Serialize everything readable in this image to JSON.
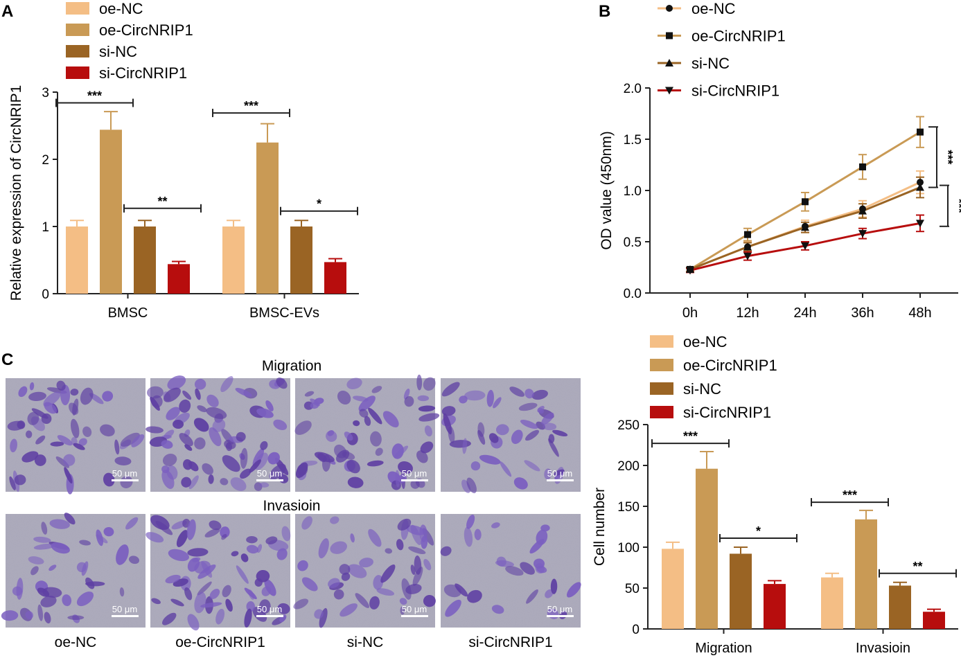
{
  "colors": {
    "oe_nc": "#F4BE85",
    "oe_circnrip1": "#C99A55",
    "si_nc": "#9A6424",
    "si_circnrip1": "#B70D0D",
    "axis": "#222222",
    "stain_dark": "#5E3FA3",
    "stain_light": "#A9A7B9"
  },
  "panels": {
    "a": "A",
    "b": "B",
    "c": "C"
  },
  "chart_data": [
    {
      "id": "A",
      "type": "bar",
      "ylabel": "Relative expression of CircNRIP1",
      "xlabel": "",
      "ylim": [
        0,
        3
      ],
      "yticks": [
        "0",
        "1",
        "2",
        "3"
      ],
      "categories": [
        "BMSC",
        "BMSC-EVs"
      ],
      "legend_position": "top-left",
      "series": [
        {
          "name": "oe-NC",
          "color": "#F4BE85",
          "values": [
            1.0,
            1.0
          ],
          "errors": [
            0.09,
            0.09
          ]
        },
        {
          "name": "oe-CircNRIP1",
          "color": "#C99A55",
          "values": [
            2.44,
            2.25
          ],
          "errors": [
            0.27,
            0.28
          ]
        },
        {
          "name": "si-NC",
          "color": "#9A6424",
          "values": [
            1.0,
            1.0
          ],
          "errors": [
            0.09,
            0.09
          ]
        },
        {
          "name": "si-CircNRIP1",
          "color": "#B70D0D",
          "values": [
            0.44,
            0.47
          ],
          "errors": [
            0.04,
            0.05
          ]
        }
      ],
      "significance": [
        {
          "category": "BMSC",
          "pair": [
            0,
            1
          ],
          "label": "***",
          "level": 2.84
        },
        {
          "category": "BMSC",
          "pair": [
            2,
            3
          ],
          "label": "**",
          "level": 1.27
        },
        {
          "category": "BMSC-EVs",
          "pair": [
            0,
            1
          ],
          "label": "***",
          "level": 2.69
        },
        {
          "category": "BMSC-EVs",
          "pair": [
            2,
            3
          ],
          "label": "*",
          "level": 1.23
        }
      ]
    },
    {
      "id": "B",
      "type": "line",
      "ylabel": "OD value (450nm)",
      "xlabel": "",
      "ylim": [
        0,
        2
      ],
      "yticks": [
        "0.0",
        "0.5",
        "1.0",
        "1.5",
        "2.0"
      ],
      "x": [
        "0h",
        "12h",
        "24h",
        "36h",
        "48h"
      ],
      "legend_position": "top-left",
      "series": [
        {
          "name": "oe-NC",
          "color": "#F4BE85",
          "marker": "circle",
          "values": [
            0.23,
            0.45,
            0.65,
            0.82,
            1.08
          ],
          "errors": [
            0.02,
            0.05,
            0.06,
            0.08,
            0.11
          ]
        },
        {
          "name": "oe-CircNRIP1",
          "color": "#C99A55",
          "marker": "square",
          "values": [
            0.23,
            0.57,
            0.89,
            1.23,
            1.57
          ],
          "errors": [
            0.02,
            0.06,
            0.09,
            0.12,
            0.15
          ]
        },
        {
          "name": "si-NC",
          "color": "#9A6424",
          "marker": "triangle-up",
          "values": [
            0.23,
            0.45,
            0.64,
            0.8,
            1.03
          ],
          "errors": [
            0.02,
            0.04,
            0.05,
            0.07,
            0.1
          ]
        },
        {
          "name": "si-CircNRIP1",
          "color": "#B70D0D",
          "marker": "triangle-down",
          "values": [
            0.22,
            0.36,
            0.46,
            0.58,
            0.68
          ],
          "errors": [
            0.02,
            0.04,
            0.04,
            0.05,
            0.08
          ]
        }
      ],
      "significance": [
        {
          "label": "***",
          "range": [
            1.03,
            1.62
          ]
        },
        {
          "label": "***",
          "range": [
            0.65,
            1.05
          ]
        }
      ]
    },
    {
      "id": "C",
      "type": "bar",
      "ylabel": "Cell number",
      "xlabel": "",
      "ylim": [
        0,
        250
      ],
      "yticks": [
        "0",
        "50",
        "100",
        "150",
        "200",
        "250"
      ],
      "categories": [
        "Migration",
        "Invasioin"
      ],
      "legend_position": "top-left",
      "series": [
        {
          "name": "oe-NC",
          "color": "#F4BE85",
          "values": [
            98,
            63
          ],
          "errors": [
            8,
            5
          ]
        },
        {
          "name": "oe-CircNRIP1",
          "color": "#C99A55",
          "values": [
            196,
            134
          ],
          "errors": [
            21,
            11
          ]
        },
        {
          "name": "si-NC",
          "color": "#9A6424",
          "values": [
            92,
            53
          ],
          "errors": [
            8,
            4
          ]
        },
        {
          "name": "si-CircNRIP1",
          "color": "#B70D0D",
          "values": [
            55,
            21
          ],
          "errors": [
            4,
            3
          ]
        }
      ],
      "significance": [
        {
          "category": "Migration",
          "pair": [
            0,
            1
          ],
          "label": "***",
          "level": 227
        },
        {
          "category": "Migration",
          "pair": [
            2,
            3
          ],
          "label": "*",
          "level": 111
        },
        {
          "category": "Invasioin",
          "pair": [
            0,
            1
          ],
          "label": "***",
          "level": 155
        },
        {
          "category": "Invasioin",
          "pair": [
            2,
            3
          ],
          "label": "**",
          "level": 68
        }
      ]
    }
  ],
  "micrographs": {
    "row_titles": [
      "Migration",
      "Invasioin"
    ],
    "column_labels": [
      "oe-NC",
      "oe-CircNRIP1",
      "si-NC",
      "si-CircNRIP1"
    ],
    "scale_bar": "50 μm",
    "density": [
      [
        0.55,
        0.95,
        0.7,
        0.45
      ],
      [
        0.35,
        0.7,
        0.45,
        0.15
      ]
    ]
  }
}
